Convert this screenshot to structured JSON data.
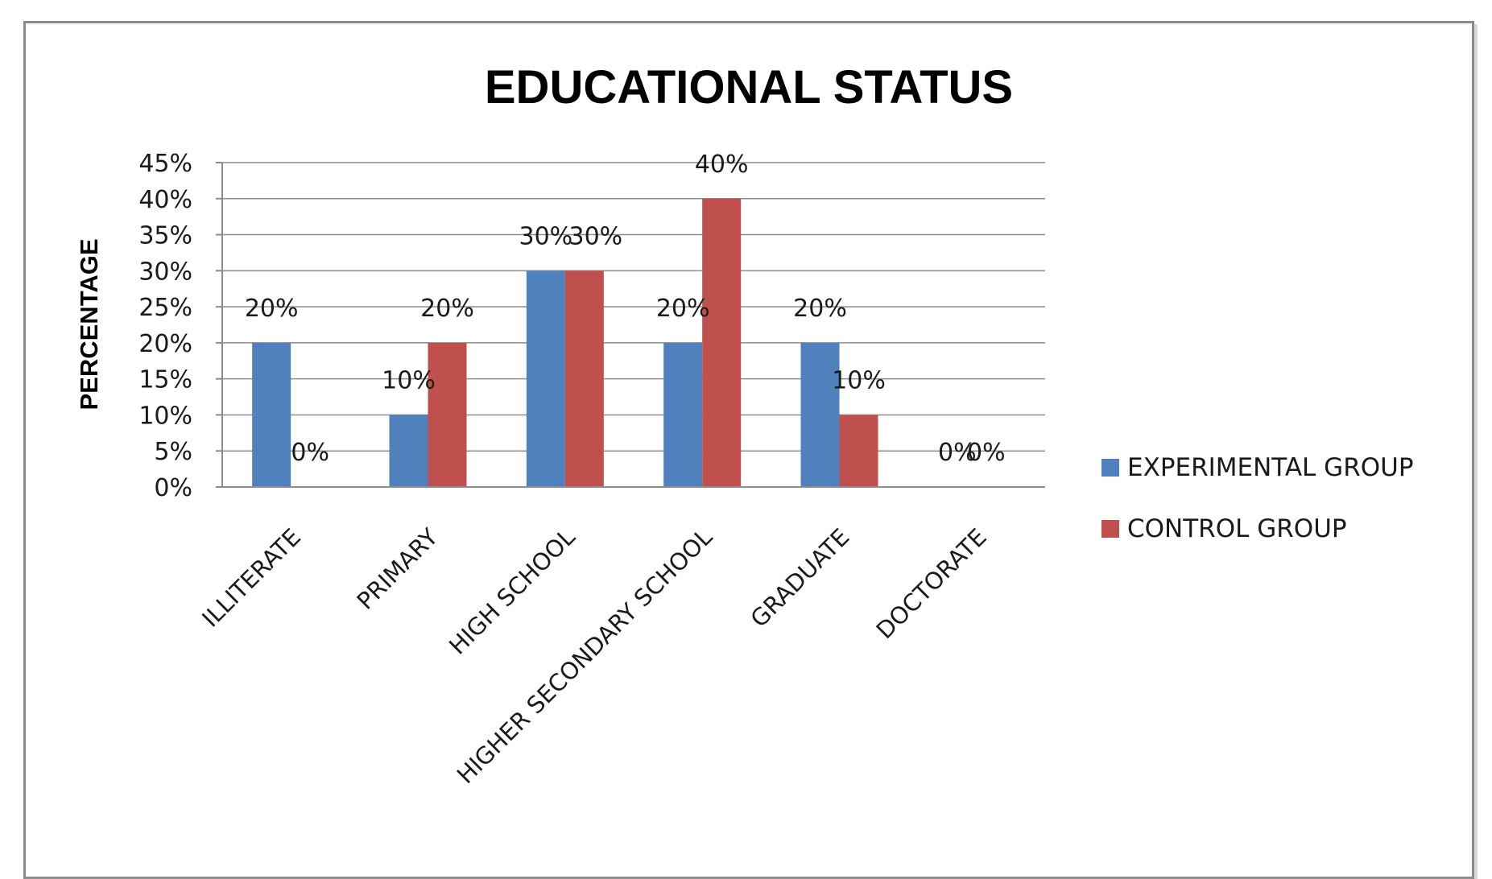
{
  "chart_data": {
    "type": "bar",
    "title": "EDUCATIONAL STATUS",
    "xlabel": "",
    "ylabel": "PERCENTAGE",
    "ylim": [
      0,
      45
    ],
    "yticks": [
      "0%",
      "5%",
      "10%",
      "15%",
      "20%",
      "25%",
      "30%",
      "35%",
      "40%",
      "45%"
    ],
    "categories": [
      "ILLITERATE",
      "PRIMARY",
      "HIGH SCHOOL",
      "HIGHER SECONDARY SCHOOL",
      "GRADUATE",
      "DOCTORATE"
    ],
    "series": [
      {
        "name": "EXPERIMENTAL GROUP",
        "color": "#4f81bd",
        "values": [
          20,
          10,
          30,
          20,
          20,
          0
        ],
        "labels": [
          "20%",
          "10%",
          "30%",
          "20%",
          "20%",
          "0%"
        ]
      },
      {
        "name": "CONTROL GROUP",
        "color": "#c0504d",
        "values": [
          0,
          20,
          30,
          40,
          10,
          0
        ],
        "labels": [
          "0%",
          "20%",
          "30%",
          "40%",
          "10%",
          "0%"
        ]
      }
    ],
    "grid": true,
    "legend_position": "right"
  }
}
